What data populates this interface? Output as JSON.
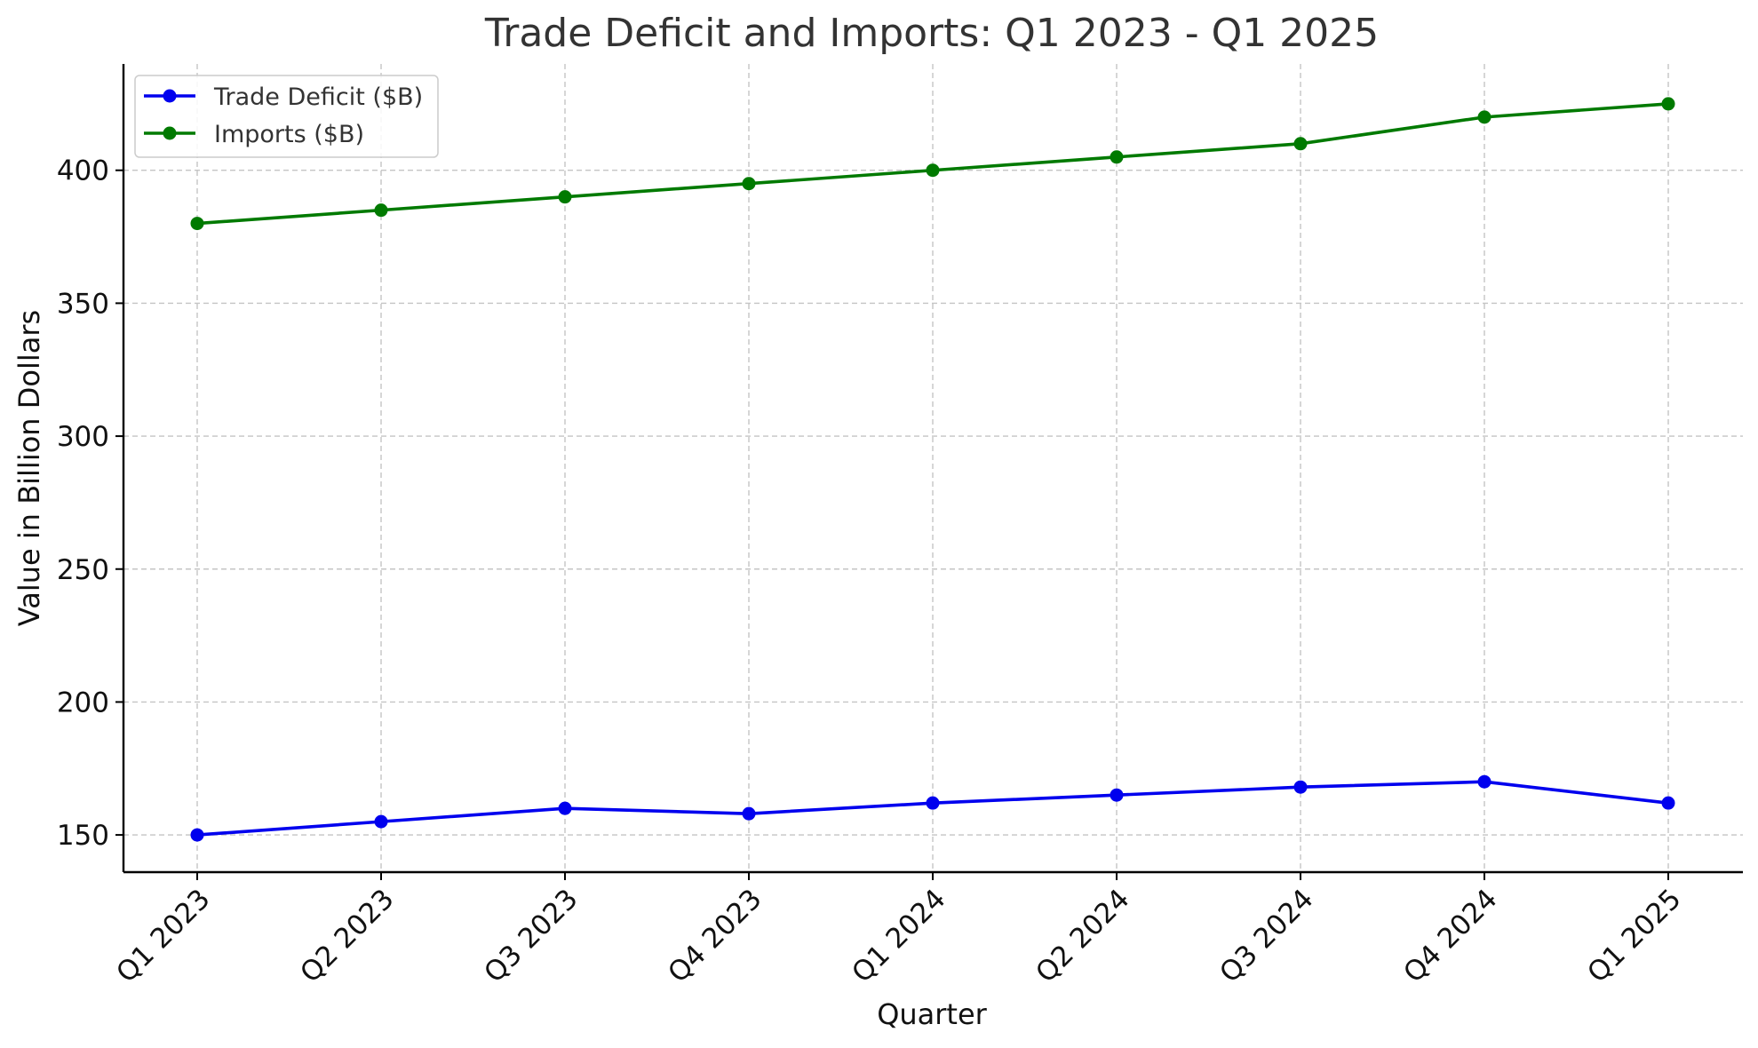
{
  "chart_data": {
    "type": "line",
    "title": "Trade Deficit and Imports: Q1 2023 - Q1 2025",
    "xlabel": "Quarter",
    "ylabel": "Value in Billion Dollars",
    "categories": [
      "Q1 2023",
      "Q2 2023",
      "Q3 2023",
      "Q4 2023",
      "Q1 2024",
      "Q2 2024",
      "Q3 2024",
      "Q4 2024",
      "Q1 2025"
    ],
    "yticks": [
      150,
      200,
      250,
      300,
      350,
      400
    ],
    "ylim": [
      136,
      440
    ],
    "grid": true,
    "legend_position": "top-left",
    "series": [
      {
        "name": "Trade Deficit ($B)",
        "color": "#0000ee",
        "marker": "circle",
        "values": [
          150,
          155,
          160,
          158,
          162,
          165,
          168,
          170,
          162
        ]
      },
      {
        "name": "Imports ($B)",
        "color": "#007a00",
        "marker": "circle",
        "values": [
          380,
          385,
          390,
          395,
          400,
          405,
          410,
          420,
          425
        ]
      }
    ]
  }
}
